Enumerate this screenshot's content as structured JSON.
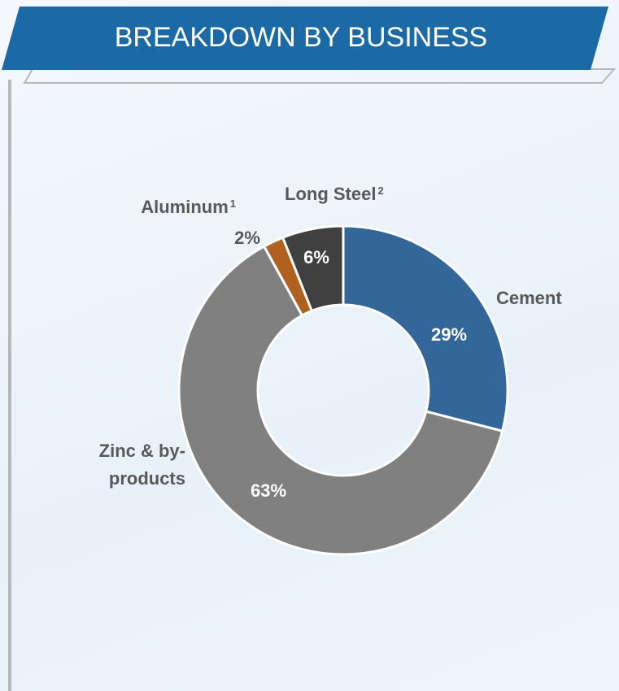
{
  "chart_data": {
    "type": "donut",
    "title": "BREAKDOWN BY BUSINESS",
    "categories": [
      "Cement",
      "Zinc & by-products",
      "Aluminum",
      "Long Steel"
    ],
    "footnote_marks": [
      null,
      null,
      "1",
      "2"
    ],
    "values": [
      29,
      63,
      2,
      6
    ],
    "value_labels": [
      "29%",
      "63%",
      "2%",
      "6%"
    ],
    "colors": [
      "#336699",
      "#808080",
      "#b0611f",
      "#404040"
    ]
  }
}
